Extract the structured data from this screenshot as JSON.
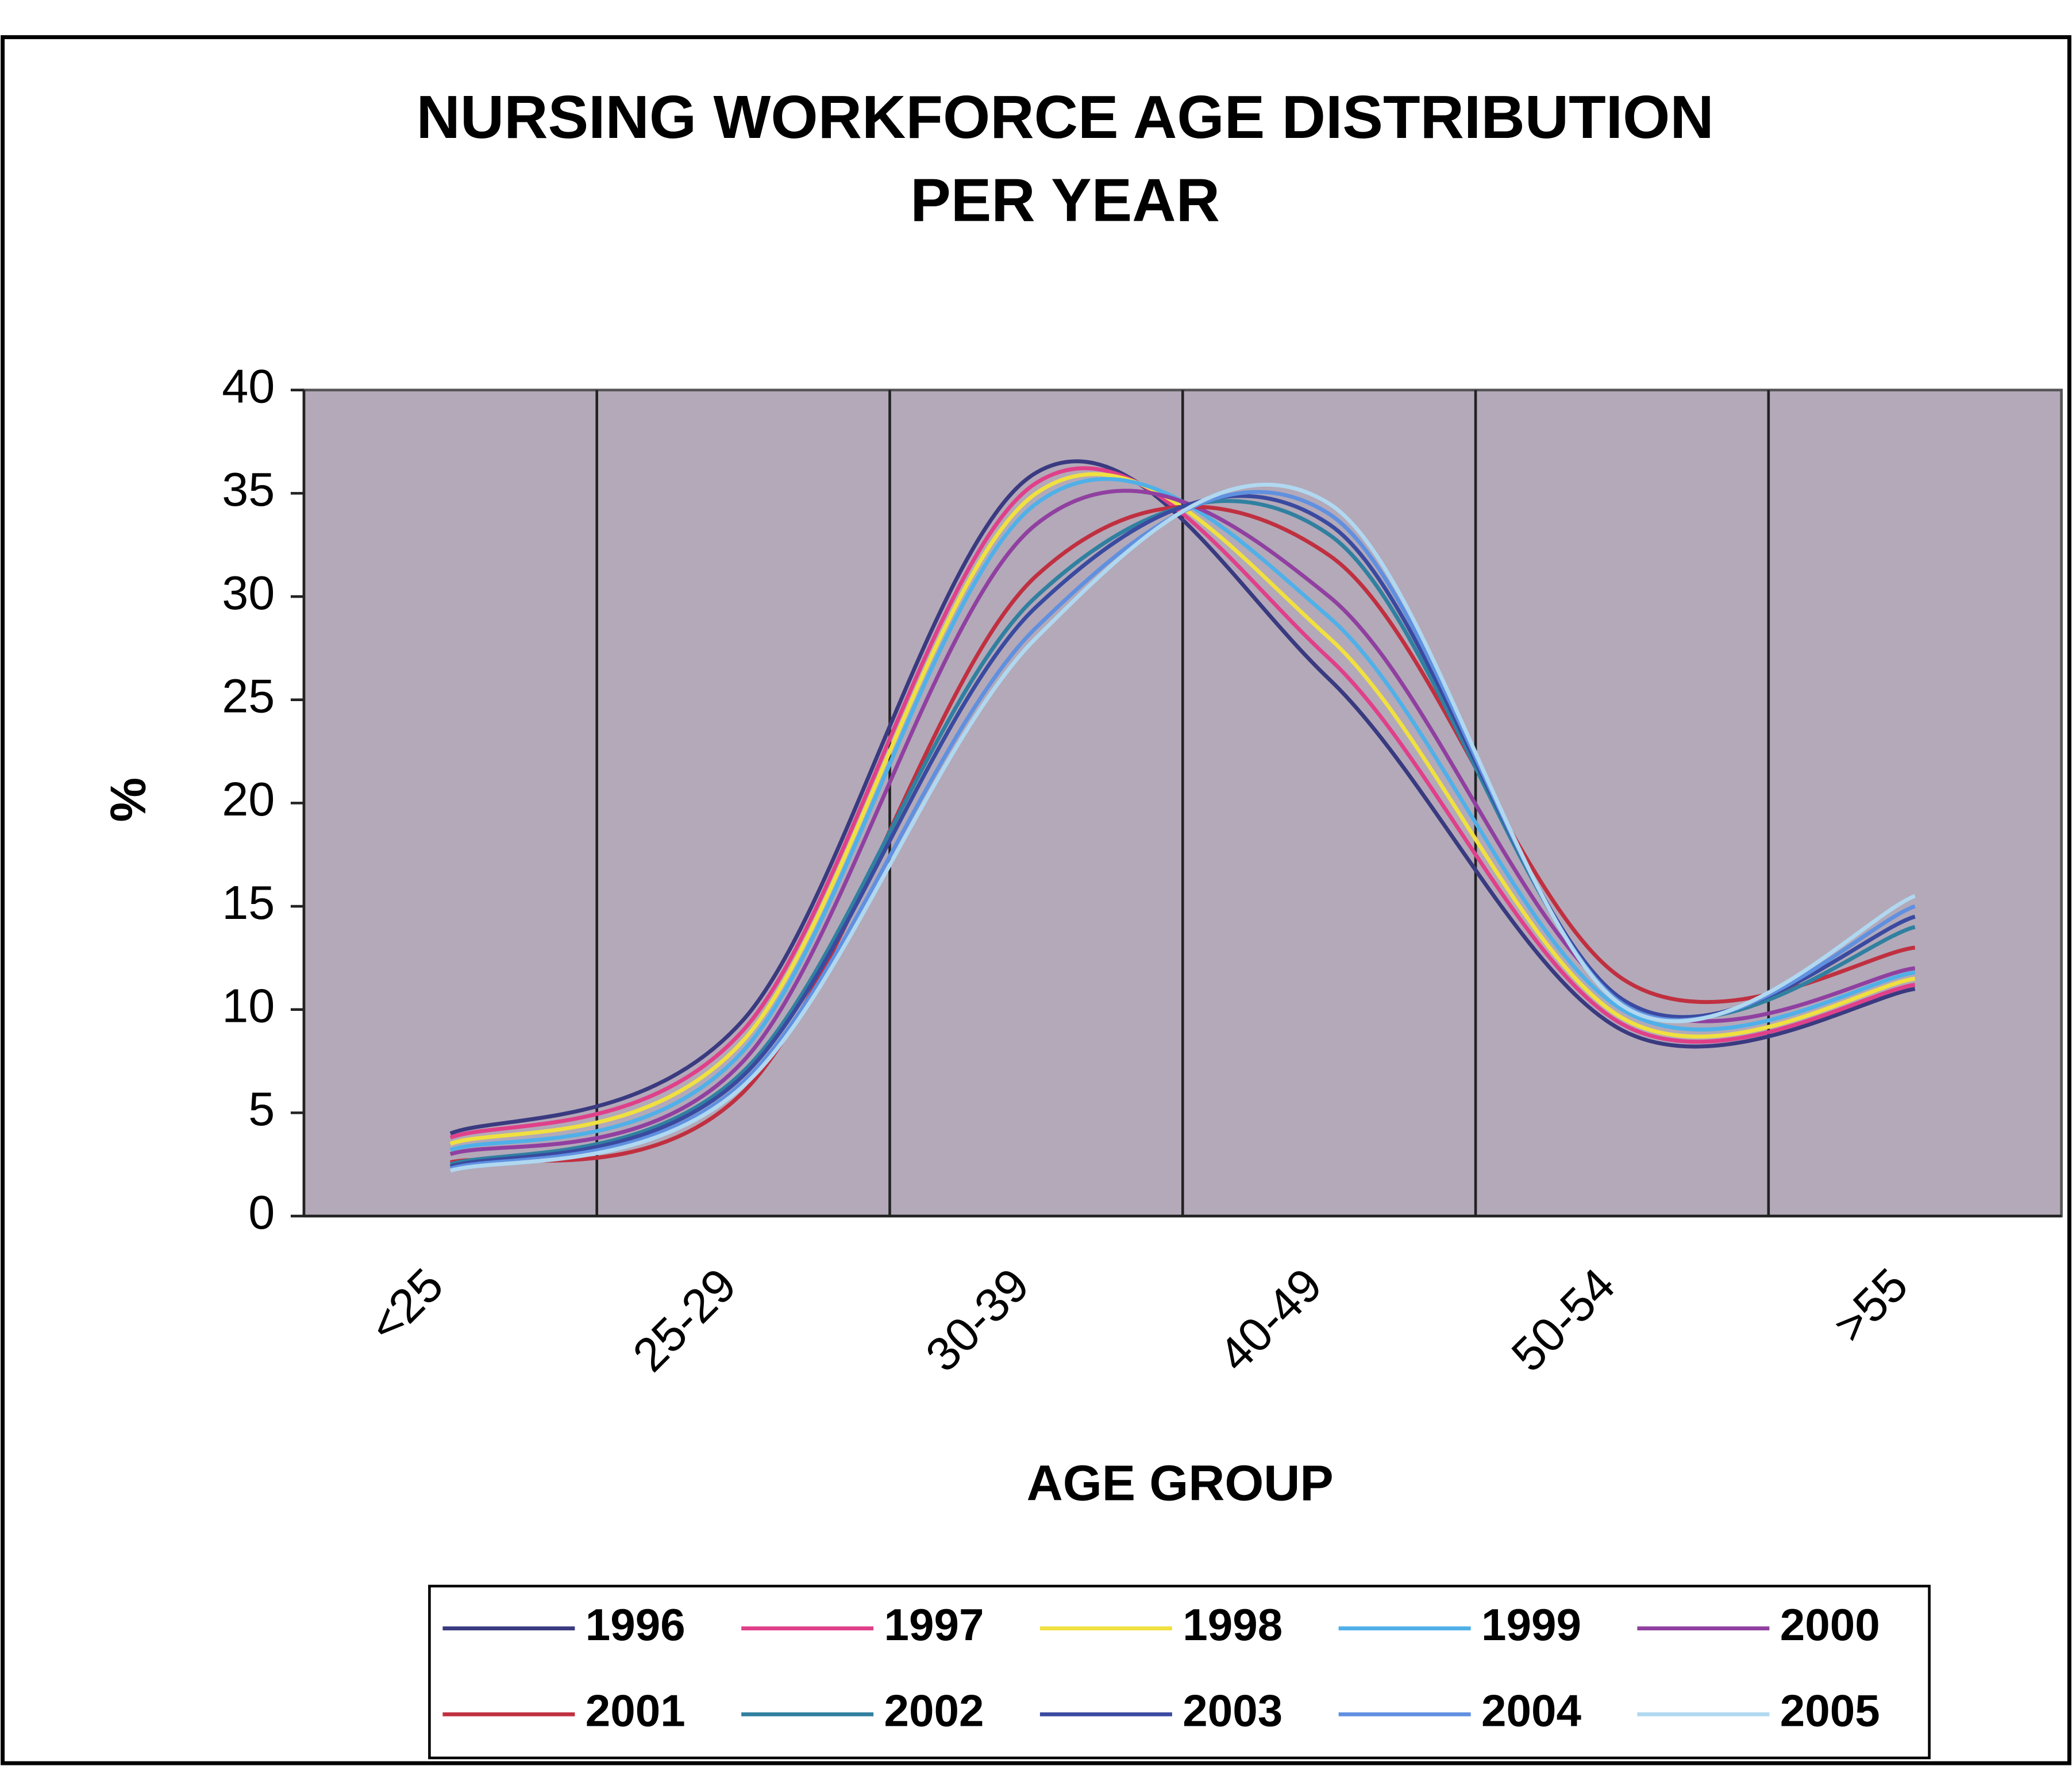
{
  "chart_data": {
    "type": "line",
    "title": [
      "NURSING WORKFORCE AGE DISTRIBUTION",
      "PER YEAR"
    ],
    "x_label": "AGE GROUP",
    "y_label": "%",
    "categories": [
      "<25",
      "25-29",
      "30-39",
      "40-49",
      "50-54",
      ">55"
    ],
    "ylim": [
      0,
      40
    ],
    "yticks": [
      0,
      5,
      10,
      15,
      20,
      25,
      30,
      35,
      40
    ],
    "background": "#b3a9b9",
    "smooth": true,
    "series": [
      {
        "name": "1996",
        "color": "#3a3a80",
        "values": [
          4,
          9.5,
          36,
          26,
          9,
          11
        ]
      },
      {
        "name": "1997",
        "color": "#e0408a",
        "values": [
          3.8,
          9,
          35.5,
          27,
          9.3,
          11.2
        ]
      },
      {
        "name": "1998",
        "color": "#f0e040",
        "values": [
          3.5,
          8.5,
          35,
          28,
          9.6,
          11.5
        ]
      },
      {
        "name": "1999",
        "color": "#50b0e8",
        "values": [
          3.2,
          8,
          34.5,
          29,
          10,
          11.8
        ]
      },
      {
        "name": "2000",
        "color": "#9040a0",
        "values": [
          3,
          7.5,
          33.5,
          30,
          10.5,
          12
        ]
      },
      {
        "name": "2001",
        "color": "#c03040",
        "values": [
          2.6,
          6,
          31,
          32,
          11.5,
          13
        ]
      },
      {
        "name": "2002",
        "color": "#3080a0",
        "values": [
          2.5,
          7,
          30,
          33,
          10.5,
          14
        ]
      },
      {
        "name": "2003",
        "color": "#3a4aa0",
        "values": [
          2.4,
          6.8,
          29.5,
          33.5,
          10.5,
          14.5
        ]
      },
      {
        "name": "2004",
        "color": "#6090e0",
        "values": [
          2.3,
          6.5,
          28.5,
          34,
          10.3,
          15
        ]
      },
      {
        "name": "2005",
        "color": "#b0d8f0",
        "values": [
          2.2,
          6.3,
          28,
          34.5,
          10.2,
          15.5
        ]
      }
    ]
  }
}
